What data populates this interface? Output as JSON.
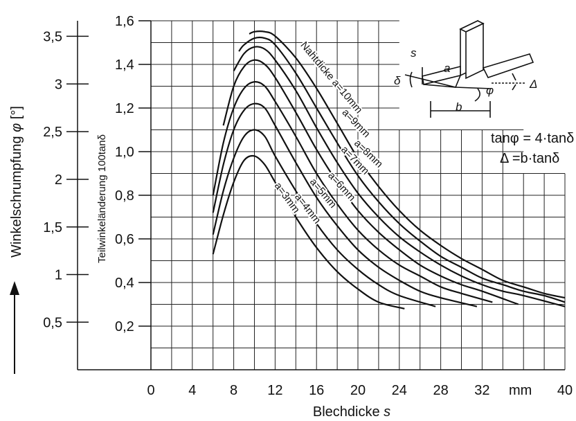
{
  "chart_data": {
    "type": "line",
    "xlabel": "Blechdicke",
    "xlabel_symbol": "s",
    "x_unit": "mm",
    "x_ticks": [
      "0",
      "4",
      "8",
      "12",
      "16",
      "20",
      "24",
      "28",
      "32",
      "40"
    ],
    "xlim": [
      0,
      40
    ],
    "ylabel_left": "Winkelschrumpfung",
    "ylabel_left_symbol": "φ",
    "ylabel_left_unit": "[°]",
    "y_ticks_left": [
      "0,5",
      "1",
      "1,5",
      "2",
      "2,5",
      "3",
      "3,5"
    ],
    "ylabel_inner": "Teilwinkeländerung 100tanδ",
    "y_ticks_inner": [
      "0,2",
      "0,4",
      "0,6",
      "0,8",
      "1,0",
      "1,2",
      "1,4",
      "1,6"
    ],
    "ylim": [
      0,
      1.6
    ],
    "grid": true,
    "series": [
      {
        "name": "a=3mm",
        "x": [
          6,
          7,
          8,
          9,
          10,
          11,
          12,
          14,
          16,
          18,
          20,
          22,
          24.5
        ],
        "y": [
          0.53,
          0.71,
          0.86,
          0.96,
          0.98,
          0.94,
          0.86,
          0.7,
          0.56,
          0.45,
          0.37,
          0.31,
          0.28
        ]
      },
      {
        "name": "a=4mm",
        "x": [
          6,
          7,
          8,
          9,
          10,
          11,
          12,
          14,
          16,
          18,
          20,
          22,
          24,
          27.5
        ],
        "y": [
          0.62,
          0.82,
          0.97,
          1.07,
          1.1,
          1.07,
          0.98,
          0.82,
          0.67,
          0.55,
          0.46,
          0.39,
          0.34,
          0.29
        ]
      },
      {
        "name": "a=5mm",
        "x": [
          6,
          7,
          8,
          9,
          10,
          11,
          12,
          14,
          16,
          18,
          20,
          22,
          24,
          26,
          28,
          31.5
        ],
        "y": [
          0.72,
          0.94,
          1.1,
          1.19,
          1.22,
          1.2,
          1.12,
          0.95,
          0.79,
          0.66,
          0.55,
          0.47,
          0.41,
          0.36,
          0.33,
          0.29
        ]
      },
      {
        "name": "a=6mm",
        "x": [
          6,
          7,
          8,
          9,
          10,
          11,
          12,
          14,
          16,
          18,
          20,
          22,
          24,
          26,
          28,
          30,
          33
        ],
        "y": [
          0.8,
          1.04,
          1.2,
          1.29,
          1.32,
          1.3,
          1.23,
          1.07,
          0.9,
          0.76,
          0.64,
          0.55,
          0.48,
          0.43,
          0.38,
          0.35,
          0.31
        ]
      },
      {
        "name": "a=7mm",
        "x": [
          7,
          8,
          9,
          10,
          11,
          12,
          14,
          16,
          18,
          20,
          22,
          24,
          26,
          28,
          30,
          32,
          35.5
        ],
        "y": [
          1.12,
          1.3,
          1.39,
          1.42,
          1.4,
          1.34,
          1.18,
          1.01,
          0.86,
          0.73,
          0.63,
          0.55,
          0.48,
          0.43,
          0.39,
          0.36,
          0.3
        ]
      },
      {
        "name": "a=8mm",
        "x": [
          8,
          9,
          10,
          11,
          12,
          14,
          16,
          18,
          20,
          22,
          24,
          26,
          28,
          30,
          32,
          34,
          36,
          40
        ],
        "y": [
          1.37,
          1.45,
          1.48,
          1.47,
          1.42,
          1.28,
          1.11,
          0.95,
          0.81,
          0.7,
          0.61,
          0.54,
          0.48,
          0.43,
          0.39,
          0.36,
          0.34,
          0.29
        ]
      },
      {
        "name": "a=9mm",
        "x": [
          8.5,
          9,
          10,
          11,
          12,
          14,
          16,
          18,
          20,
          22,
          24,
          26,
          28,
          30,
          32,
          34,
          36,
          38,
          40
        ],
        "y": [
          1.46,
          1.49,
          1.52,
          1.52,
          1.49,
          1.36,
          1.2,
          1.04,
          0.89,
          0.77,
          0.67,
          0.59,
          0.52,
          0.47,
          0.42,
          0.39,
          0.36,
          0.34,
          0.31
        ]
      },
      {
        "name": "a=10mm",
        "x": [
          9.5,
          10,
          11,
          12,
          14,
          16,
          18,
          20,
          22,
          24,
          26,
          28,
          30,
          32,
          34,
          36,
          38,
          40
        ],
        "y": [
          1.54,
          1.55,
          1.55,
          1.53,
          1.43,
          1.29,
          1.13,
          0.97,
          0.84,
          0.73,
          0.64,
          0.57,
          0.51,
          0.46,
          0.41,
          0.38,
          0.35,
          0.33
        ]
      }
    ],
    "curve_label_prefix": "Nahtdicke",
    "formulas": [
      "tanφ = 4·tanδ",
      "Δ =b·tanδ"
    ],
    "detail_labels": [
      "s",
      "a",
      "δ",
      "φ",
      "Δ",
      "b"
    ],
    "line_color": "#111111",
    "grid_color": "#222222"
  }
}
